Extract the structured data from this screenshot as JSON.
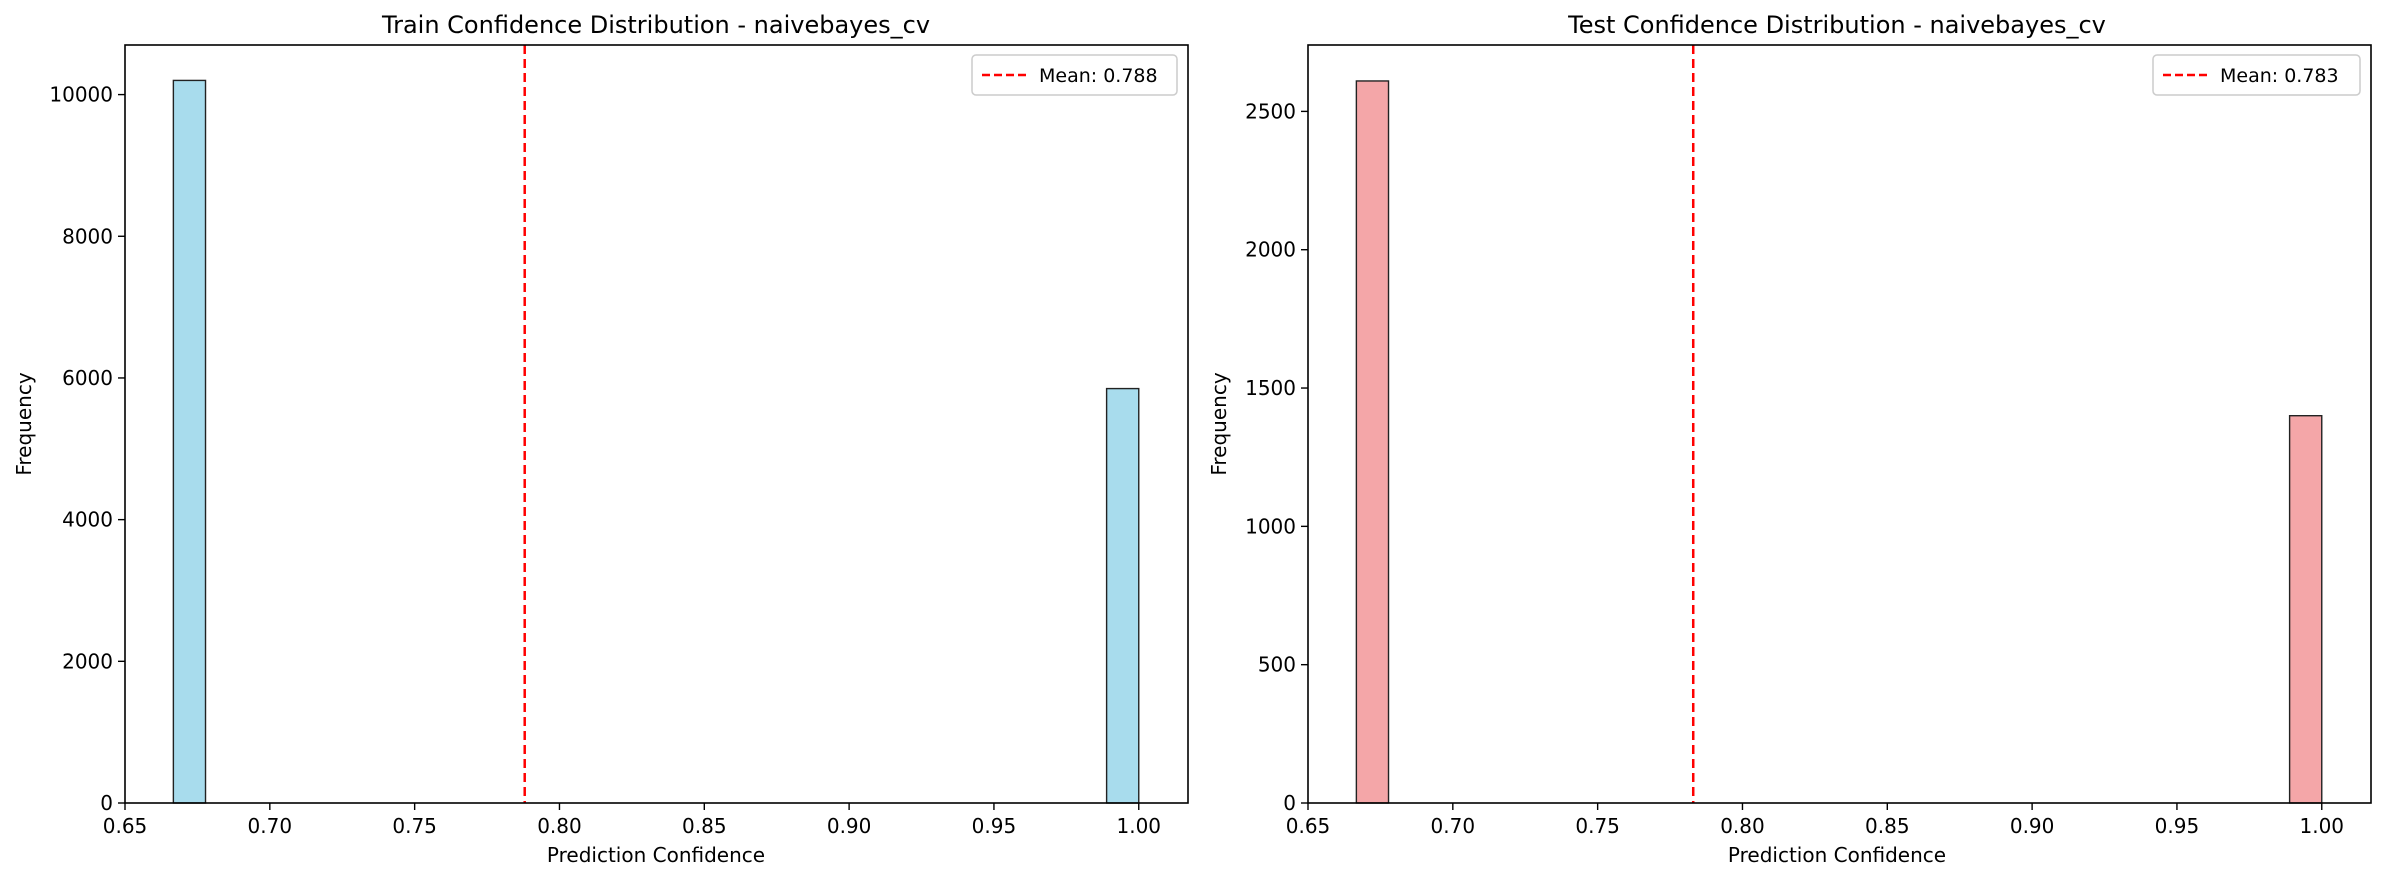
{
  "chart_data": [
    {
      "type": "bar",
      "title": "Train Confidence Distribution - naivebayes_cv",
      "xlabel": "Prediction Confidence",
      "ylabel": "Frequency",
      "xlim": [
        0.65,
        1.017
      ],
      "ylim": [
        0,
        10700
      ],
      "xticks": [
        "0.65",
        "0.70",
        "0.75",
        "0.80",
        "0.85",
        "0.90",
        "0.95",
        "1.00"
      ],
      "yticks": [
        "0",
        "2000",
        "4000",
        "6000",
        "8000",
        "10000"
      ],
      "bins": [
        {
          "x0": 0.6667,
          "x1": 0.6778,
          "value": 10200
        },
        {
          "x0": 0.9889,
          "x1": 1.0,
          "value": 5850
        }
      ],
      "mean": {
        "value": 0.788,
        "label": "Mean: 0.788"
      },
      "bar_color": "#a8dced",
      "mean_color": "#ff0000",
      "grid": false,
      "legend_position": "top-right"
    },
    {
      "type": "bar",
      "title": "Test Confidence Distribution - naivebayes_cv",
      "xlabel": "Prediction Confidence",
      "ylabel": "Frequency",
      "xlim": [
        0.65,
        1.017
      ],
      "ylim": [
        0,
        2740
      ],
      "xticks": [
        "0.65",
        "0.70",
        "0.75",
        "0.80",
        "0.85",
        "0.90",
        "0.95",
        "1.00"
      ],
      "yticks": [
        "0",
        "500",
        "1000",
        "1500",
        "2000",
        "2500"
      ],
      "bins": [
        {
          "x0": 0.6667,
          "x1": 0.6778,
          "value": 2610
        },
        {
          "x0": 0.9889,
          "x1": 1.0,
          "value": 1400
        }
      ],
      "mean": {
        "value": 0.783,
        "label": "Mean: 0.783"
      },
      "bar_color": "#f4a6a8",
      "mean_color": "#ff0000",
      "grid": false,
      "legend_position": "top-right"
    }
  ]
}
